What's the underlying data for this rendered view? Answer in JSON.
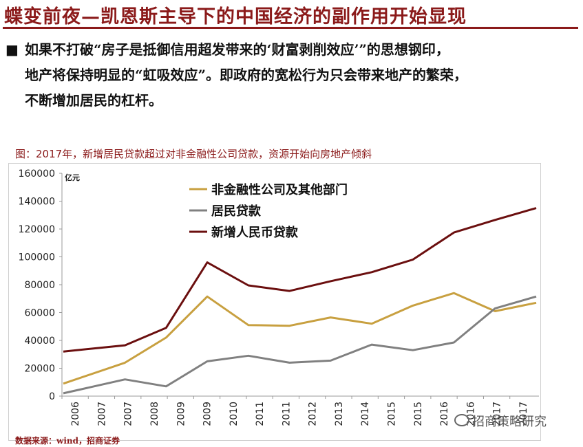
{
  "slide": {
    "title": "蝶变前夜—凯恩斯主导下的中国经济的副作用开始显现",
    "bullet_symbol": "■",
    "bullet_lines": [
      "如果不打破“房子是抵御信用超发带来的‘财富剥削效应’”的思想钢印，",
      "地产将保持明显的“虹吸效应”。即政府的宽松行为只会带来地产的繁荣，",
      "不断增加居民的杠杆。"
    ],
    "chart_title": "图：2017年，新增居民贷款超过对非金融性公司贷款，资源开始向房地产倾斜",
    "source": "数据来源：wind，招商证券",
    "watermark": "招商策略研究",
    "watermark_icon": "wechat-icon"
  },
  "chart_data": {
    "type": "line",
    "unit_label": "亿元",
    "categories": [
      "2006",
      "2007",
      "2007",
      "2008",
      "2009",
      "2009",
      "2010",
      "2011",
      "2011",
      "2012",
      "2013",
      "2014",
      "2015",
      "2015",
      "2016",
      "2016",
      "2017",
      "2017"
    ],
    "ylim": [
      0,
      160000
    ],
    "yticks": [
      0,
      20000,
      40000,
      60000,
      80000,
      100000,
      120000,
      140000,
      160000
    ],
    "grid": false,
    "legend_position": "top-left",
    "series": [
      {
        "name": "非金融性公司及其他部门",
        "color": "#c8a040",
        "points": [
          [
            0,
            9000
          ],
          [
            3,
            24000
          ],
          [
            5,
            42000
          ],
          [
            7,
            71500
          ],
          [
            9,
            51000
          ],
          [
            11,
            50500
          ],
          [
            13,
            56500
          ],
          [
            15,
            52000
          ],
          [
            17,
            65000
          ],
          [
            19,
            74000
          ],
          [
            21,
            61000
          ],
          [
            23,
            67000
          ]
        ]
      },
      {
        "name": "居民贷款",
        "color": "#808080",
        "points": [
          [
            0,
            2000
          ],
          [
            3,
            12000
          ],
          [
            5,
            7000
          ],
          [
            7,
            25000
          ],
          [
            9,
            29000
          ],
          [
            11,
            24000
          ],
          [
            13,
            25500
          ],
          [
            15,
            37000
          ],
          [
            17,
            33000
          ],
          [
            19,
            38500
          ],
          [
            21,
            63000
          ],
          [
            23,
            71500
          ]
        ]
      },
      {
        "name": "新增人民币贷款",
        "color": "#6b0f0f",
        "points": [
          [
            0,
            32000
          ],
          [
            3,
            36500
          ],
          [
            5,
            49000
          ],
          [
            7,
            96000
          ],
          [
            9,
            79500
          ],
          [
            11,
            75500
          ],
          [
            13,
            82500
          ],
          [
            15,
            89000
          ],
          [
            17,
            98000
          ],
          [
            19,
            117500
          ],
          [
            21,
            126500
          ],
          [
            23,
            135000
          ]
        ]
      }
    ]
  }
}
